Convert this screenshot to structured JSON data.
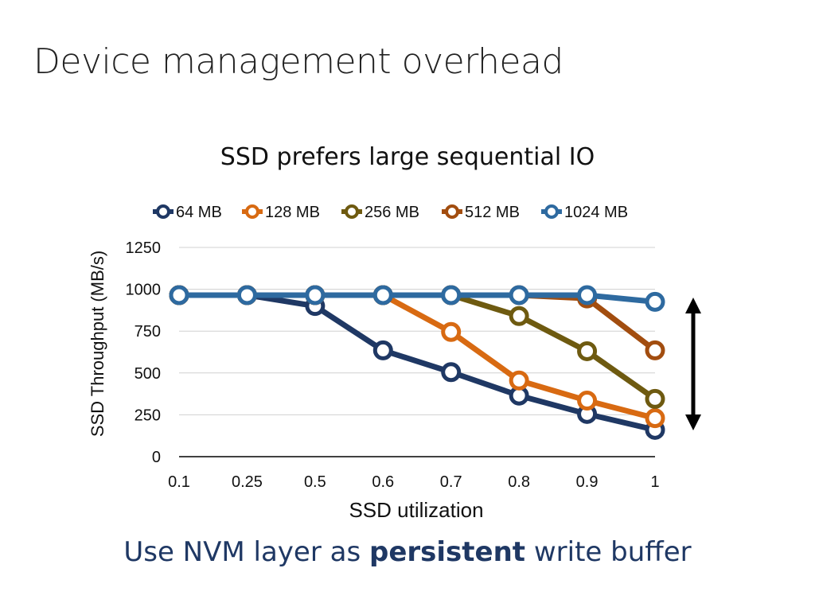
{
  "slide": {
    "title": "Device management overhead",
    "caption_before": "Use NVM layer as ",
    "caption_bold": "persistent",
    "caption_after": " write buffer"
  },
  "chart_data": {
    "type": "line",
    "title": "SSD prefers large sequential IO",
    "xlabel": "SSD utilization",
    "ylabel": "SSD Throughput (MB/s)",
    "categories": [
      "0.1",
      "0.25",
      "0.5",
      "0.6",
      "0.7",
      "0.8",
      "0.9",
      "1"
    ],
    "ylim": [
      0,
      1250
    ],
    "yticks": [
      "0",
      "250",
      "500",
      "750",
      "1000",
      "1250"
    ],
    "grid": true,
    "legend_position": "top",
    "series": [
      {
        "name": "64 MB",
        "color": "#1f3864",
        "values": [
          965,
          965,
          900,
          635,
          505,
          365,
          255,
          160
        ]
      },
      {
        "name": "128 MB",
        "color": "#d86a12",
        "values": [
          965,
          965,
          965,
          965,
          745,
          455,
          335,
          230
        ]
      },
      {
        "name": "256 MB",
        "color": "#6e5a10",
        "values": [
          965,
          965,
          965,
          965,
          965,
          840,
          630,
          345
        ]
      },
      {
        "name": "512 MB",
        "color": "#a24d0f",
        "values": [
          965,
          965,
          965,
          965,
          965,
          965,
          945,
          635
        ]
      },
      {
        "name": "1024 MB",
        "color": "#2e6aa0",
        "values": [
          965,
          965,
          965,
          965,
          965,
          965,
          965,
          925
        ]
      }
    ],
    "annotation": "double-headed-arrow"
  }
}
